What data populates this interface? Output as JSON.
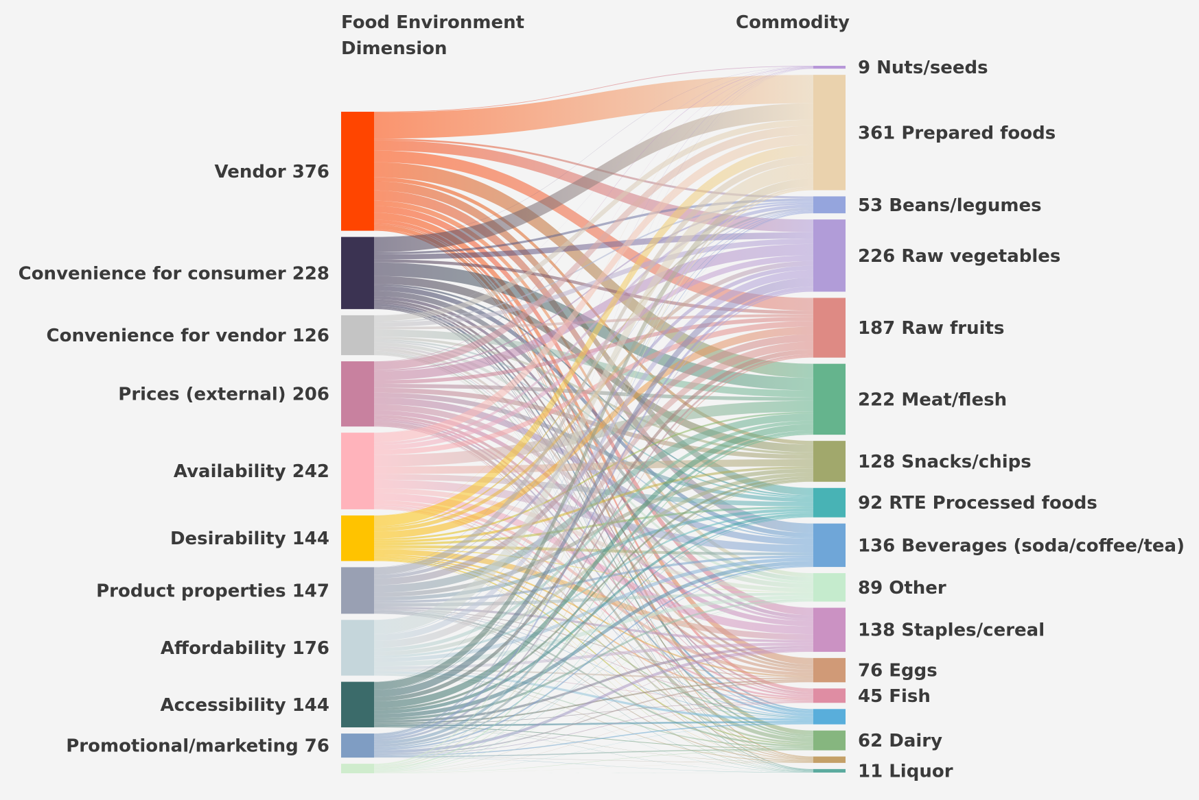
{
  "headers": {
    "left_line1": "Food Environment",
    "left_line2": "Dimension",
    "right": "Commodity"
  },
  "chart_data": {
    "type": "sankey",
    "sources": [
      {
        "name": "Vendor",
        "value": 376,
        "color": "#ff4500"
      },
      {
        "name": "Convenience for consumer",
        "value": 228,
        "color": "#3b3352"
      },
      {
        "name": "Convenience for vendor",
        "value": 126,
        "color": "#c4c4c4"
      },
      {
        "name": "Prices (external)",
        "value": 206,
        "color": "#c8819f"
      },
      {
        "name": "Availability",
        "value": 242,
        "color": "#ffb3bb"
      },
      {
        "name": "Desirability",
        "value": 144,
        "color": "#ffc300"
      },
      {
        "name": "Product properties",
        "value": 147,
        "color": "#99a0b3"
      },
      {
        "name": "Affordability",
        "value": 176,
        "color": "#c5d6db"
      },
      {
        "name": "Accessibility",
        "value": 144,
        "color": "#3b6b6a"
      },
      {
        "name": "Promotional/marketing",
        "value": 76,
        "color": "#7f9dc3"
      },
      {
        "name": "",
        "value": 30,
        "color": "#cfeccd"
      }
    ],
    "targets": [
      {
        "name": "Nuts/seeds",
        "value": 9,
        "color": "#b797d8"
      },
      {
        "name": "Prepared foods",
        "value": 361,
        "color": "#ead2ad"
      },
      {
        "name": "Beans/legumes",
        "value": 53,
        "color": "#95a5dd"
      },
      {
        "name": "Raw vegetables",
        "value": 226,
        "color": "#b19cd8"
      },
      {
        "name": "Raw fruits",
        "value": 187,
        "color": "#de8a84"
      },
      {
        "name": "Meat/flesh",
        "value": 222,
        "color": "#65b48d"
      },
      {
        "name": "Snacks/chips",
        "value": 128,
        "color": "#a1a86c"
      },
      {
        "name": "RTE Processed foods",
        "value": 92,
        "color": "#48b3b5"
      },
      {
        "name": "Beverages (soda/coffee/tea)",
        "value": 136,
        "color": "#6fa6d8"
      },
      {
        "name": "Other",
        "value": 89,
        "color": "#c5ebcd"
      },
      {
        "name": "Staples/cereal",
        "value": 138,
        "color": "#cb92c3"
      },
      {
        "name": "Eggs",
        "value": 76,
        "color": "#d09a77"
      },
      {
        "name": "Fish",
        "value": 45,
        "color": "#df8da3"
      },
      {
        "name": "",
        "value": 48,
        "color": "#59aedb"
      },
      {
        "name": "Dairy",
        "value": 62,
        "color": "#86b67f"
      },
      {
        "name": "",
        "value": 20,
        "color": "#c4a068"
      },
      {
        "name": "Liquor",
        "value": 11,
        "color": "#5cab9f"
      }
    ]
  }
}
